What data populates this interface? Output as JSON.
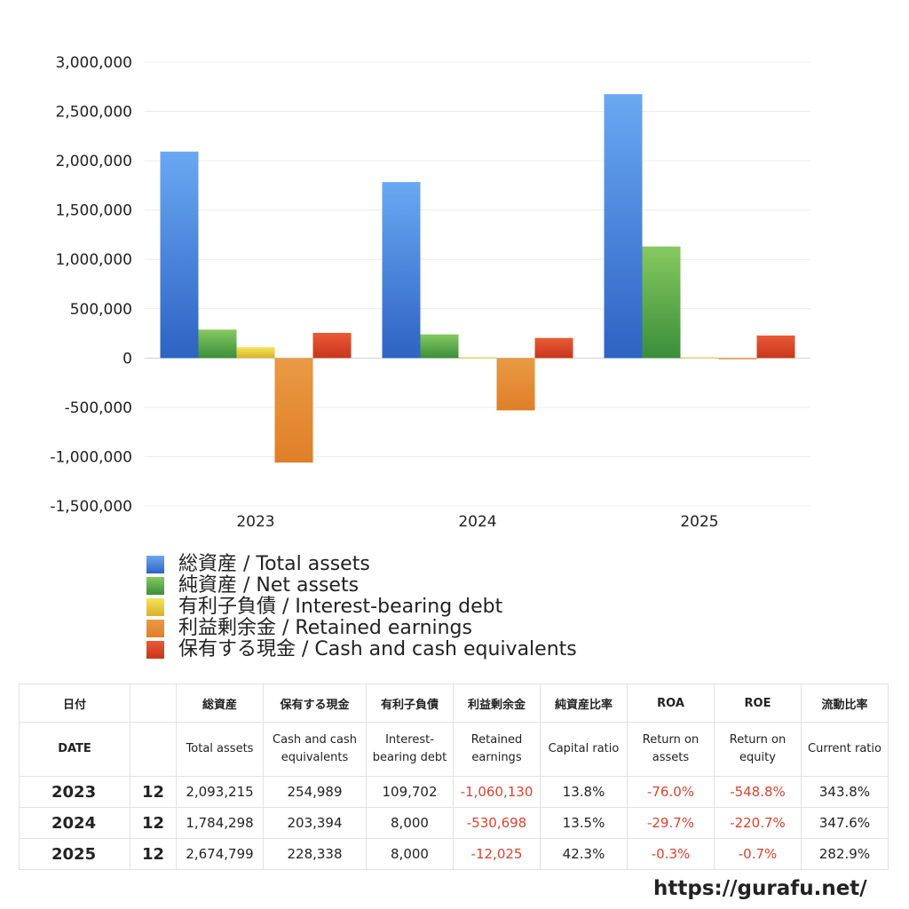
{
  "chart_data": {
    "type": "bar",
    "categories": [
      "2023",
      "2024",
      "2025"
    ],
    "series": [
      {
        "name": "総資産 / Total assets",
        "values": [
          2093215,
          1784298,
          2674799
        ]
      },
      {
        "name": "純資産 / Net assets",
        "values": [
          288000,
          240000,
          1131000
        ]
      },
      {
        "name": "有利子負債 / Interest-bearing debt",
        "values": [
          109702,
          8000,
          8000
        ]
      },
      {
        "name": "利益剰余金 / Retained earnings",
        "values": [
          -1060130,
          -530698,
          -12025
        ]
      },
      {
        "name": "保有する現金 /  Cash and cash equivalents",
        "values": [
          254989,
          203394,
          228338
        ]
      }
    ],
    "ylim": [
      -1500000,
      3000000
    ],
    "yticks": [
      3000000,
      2500000,
      2000000,
      1500000,
      1000000,
      500000,
      0,
      -500000,
      -1000000,
      -1500000
    ],
    "ytick_labels": [
      "3,000,000",
      "2,500,000",
      "2,000,000",
      "1,500,000",
      "1,000,000",
      "500,000",
      "0",
      "-500,000",
      "-1,000,000",
      "-1,500,000"
    ],
    "grid": true,
    "legend_position": "bottom-left",
    "colors": {
      "total_assets": [
        "#6aa8f2",
        "#2d63c4"
      ],
      "net_assets": [
        "#86c960",
        "#3a8e3a"
      ],
      "interest_debt": [
        "#f5e45a",
        "#d8b12a"
      ],
      "retained_earnings": [
        "#e99a44",
        "#df7f28"
      ],
      "cash": [
        "#e95a35",
        "#c8361c"
      ]
    }
  },
  "legend": {
    "items": [
      {
        "label": "総資産 / Total assets",
        "color": "#3b7fe0"
      },
      {
        "label": "純資産 / Net assets",
        "color": "#4ba24a"
      },
      {
        "label": "有利子負債 / Interest-bearing debt",
        "color": "#e6c63a"
      },
      {
        "label": "利益剰余金 / Retained earnings",
        "color": "#e38a35"
      },
      {
        "label": "保有する現金 /  Cash and cash equivalents",
        "color": "#d9432a"
      }
    ]
  },
  "table": {
    "header_jp": [
      "日付",
      "",
      "総資産",
      "保有する現金",
      "有利子負債",
      "利益剰余金",
      "純資産比率",
      "ROA",
      "ROE",
      "流動比率"
    ],
    "header_en": [
      "DATE",
      "",
      "Total assets",
      "Cash and cash equivalents",
      "Interest-bearing debt",
      "Retained earnings",
      "Capital ratio",
      "Return on assets",
      "Return on equity",
      "Current ratio"
    ],
    "rows": [
      {
        "year": "2023",
        "month": "12",
        "total_assets": "2,093,215",
        "cash": "254,989",
        "debt": "109,702",
        "retained": "-1,060,130",
        "capital_ratio": "13.8%",
        "roa": "-76.0%",
        "roe": "-548.8%",
        "current_ratio": "343.8%"
      },
      {
        "year": "2024",
        "month": "12",
        "total_assets": "1,784,298",
        "cash": "203,394",
        "debt": "8,000",
        "retained": "-530,698",
        "capital_ratio": "13.5%",
        "roa": "-29.7%",
        "roe": "-220.7%",
        "current_ratio": "347.6%"
      },
      {
        "year": "2025",
        "month": "12",
        "total_assets": "2,674,799",
        "cash": "228,338",
        "debt": "8,000",
        "retained": "-12,025",
        "capital_ratio": "42.3%",
        "roa": "-0.3%",
        "roe": "-0.7%",
        "current_ratio": "282.9%"
      }
    ],
    "negative_color": "#d9432f"
  },
  "footer": {
    "url": "https://gurafu.net/"
  }
}
